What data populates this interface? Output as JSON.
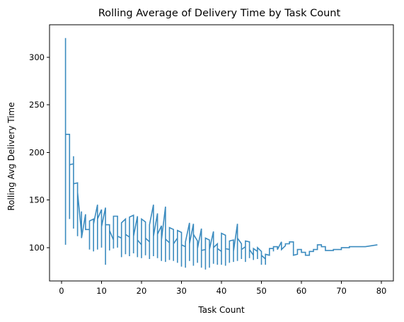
{
  "chart_data": {
    "type": "line",
    "drawstyle": "steps",
    "title": "Rolling Average of Delivery Time by Task Count",
    "xlabel": "Task Count",
    "ylabel": "Rolling Avg Delivery Time",
    "xlim": [
      -3,
      83
    ],
    "ylim": [
      65,
      334
    ],
    "xticks": [
      0,
      10,
      20,
      30,
      40,
      50,
      60,
      70,
      80
    ],
    "yticks": [
      100,
      150,
      200,
      250,
      300
    ],
    "grid": false,
    "line_color": "#3b8bbf",
    "series": [
      {
        "points": [
          [
            1,
            103
          ],
          [
            1,
            320
          ],
          [
            1,
            224
          ],
          [
            1,
            219
          ],
          [
            2,
            219
          ],
          [
            2,
            130
          ],
          [
            2,
            187
          ],
          [
            3,
            188
          ],
          [
            3,
            120
          ],
          [
            3,
            196
          ],
          [
            3,
            167
          ],
          [
            4,
            168
          ],
          [
            4,
            112
          ],
          [
            4,
            158
          ],
          [
            5,
            115
          ],
          [
            5,
            138
          ],
          [
            5,
            110
          ],
          [
            6,
            135
          ],
          [
            6,
            119
          ],
          [
            7,
            119
          ],
          [
            7,
            98
          ],
          [
            7,
            128
          ],
          [
            8,
            130
          ],
          [
            8,
            96
          ],
          [
            8,
            125
          ],
          [
            9,
            145
          ],
          [
            9,
            98
          ],
          [
            9,
            130
          ],
          [
            10,
            140
          ],
          [
            10,
            100
          ],
          [
            10,
            122
          ],
          [
            11,
            142
          ],
          [
            11,
            82
          ],
          [
            11,
            124
          ],
          [
            12,
            124
          ],
          [
            12,
            97
          ],
          [
            12,
            118
          ],
          [
            13,
            108
          ],
          [
            13,
            99
          ],
          [
            13,
            133
          ],
          [
            14,
            133
          ],
          [
            14,
            100
          ],
          [
            14,
            112
          ],
          [
            15,
            110
          ],
          [
            15,
            90
          ],
          [
            15,
            126
          ],
          [
            16,
            130
          ],
          [
            16,
            93
          ],
          [
            16,
            114
          ],
          [
            17,
            111
          ],
          [
            17,
            91
          ],
          [
            17,
            132
          ],
          [
            18,
            134
          ],
          [
            18,
            94
          ],
          [
            18,
            112
          ],
          [
            19,
            133
          ],
          [
            19,
            90
          ],
          [
            19,
            108
          ],
          [
            20,
            103
          ],
          [
            20,
            89
          ],
          [
            20,
            130
          ],
          [
            21,
            127
          ],
          [
            21,
            92
          ],
          [
            21,
            110
          ],
          [
            22,
            106
          ],
          [
            22,
            88
          ],
          [
            22,
            124
          ],
          [
            23,
            145
          ],
          [
            23,
            91
          ],
          [
            23,
            112
          ],
          [
            24,
            136
          ],
          [
            24,
            89
          ],
          [
            24,
            114
          ],
          [
            25,
            123
          ],
          [
            25,
            86
          ],
          [
            25,
            108
          ],
          [
            26,
            143
          ],
          [
            26,
            85
          ],
          [
            26,
            109
          ],
          [
            27,
            105
          ],
          [
            27,
            87
          ],
          [
            27,
            121
          ],
          [
            28,
            119
          ],
          [
            28,
            86
          ],
          [
            28,
            104
          ],
          [
            29,
            110
          ],
          [
            29,
            84
          ],
          [
            29,
            118
          ],
          [
            30,
            116
          ],
          [
            30,
            80
          ],
          [
            30,
            103
          ],
          [
            31,
            101
          ],
          [
            31,
            79
          ],
          [
            31,
            106
          ],
          [
            32,
            126
          ],
          [
            32,
            86
          ],
          [
            32,
            104
          ],
          [
            33,
            125
          ],
          [
            33,
            81
          ],
          [
            33,
            114
          ],
          [
            34,
            107
          ],
          [
            34,
            84
          ],
          [
            34,
            99
          ],
          [
            35,
            120
          ],
          [
            35,
            79
          ],
          [
            35,
            97
          ],
          [
            36,
            98
          ],
          [
            36,
            77
          ],
          [
            36,
            110
          ],
          [
            37,
            108
          ],
          [
            37,
            79
          ],
          [
            37,
            98
          ],
          [
            38,
            117
          ],
          [
            38,
            83
          ],
          [
            38,
            100
          ],
          [
            39,
            104
          ],
          [
            39,
            82
          ],
          [
            39,
            99
          ],
          [
            40,
            96
          ],
          [
            40,
            82
          ],
          [
            40,
            115
          ],
          [
            41,
            113
          ],
          [
            41,
            81
          ],
          [
            41,
            99
          ],
          [
            42,
            98
          ],
          [
            42,
            84
          ],
          [
            42,
            107
          ],
          [
            43,
            108
          ],
          [
            43,
            85
          ],
          [
            43,
            96
          ],
          [
            44,
            125
          ],
          [
            44,
            86
          ],
          [
            44,
            110
          ],
          [
            45,
            104
          ],
          [
            45,
            88
          ],
          [
            45,
            98
          ],
          [
            46,
            101
          ],
          [
            46,
            85
          ],
          [
            46,
            107
          ],
          [
            47,
            106
          ],
          [
            47,
            89
          ],
          [
            47,
            98
          ],
          [
            48,
            92
          ],
          [
            48,
            87
          ],
          [
            48,
            99
          ],
          [
            49,
            96
          ],
          [
            49,
            88
          ],
          [
            49,
            100
          ],
          [
            50,
            96
          ],
          [
            50,
            82
          ],
          [
            50,
            92
          ],
          [
            51,
            88
          ],
          [
            51,
            82
          ],
          [
            51,
            93
          ],
          [
            52,
            92
          ],
          [
            52,
            99
          ],
          [
            53,
            99
          ],
          [
            53,
            96
          ],
          [
            53,
            101
          ],
          [
            54,
            101
          ],
          [
            54,
            98
          ],
          [
            55,
            106
          ],
          [
            55,
            98
          ],
          [
            56,
            102
          ],
          [
            56,
            104
          ],
          [
            57,
            104
          ],
          [
            57,
            106
          ],
          [
            58,
            106
          ],
          [
            58,
            92
          ],
          [
            59,
            93
          ],
          [
            59,
            98
          ],
          [
            60,
            98
          ],
          [
            60,
            95
          ],
          [
            61,
            95
          ],
          [
            61,
            92
          ],
          [
            62,
            92
          ],
          [
            62,
            96
          ],
          [
            63,
            96
          ],
          [
            63,
            98
          ],
          [
            64,
            98
          ],
          [
            64,
            103
          ],
          [
            65,
            103
          ],
          [
            65,
            101
          ],
          [
            66,
            101
          ],
          [
            66,
            97
          ],
          [
            68,
            97
          ],
          [
            68,
            98
          ],
          [
            70,
            98
          ],
          [
            70,
            100
          ],
          [
            72,
            100
          ],
          [
            72,
            101
          ],
          [
            76,
            101
          ],
          [
            79,
            103
          ]
        ]
      }
    ]
  }
}
